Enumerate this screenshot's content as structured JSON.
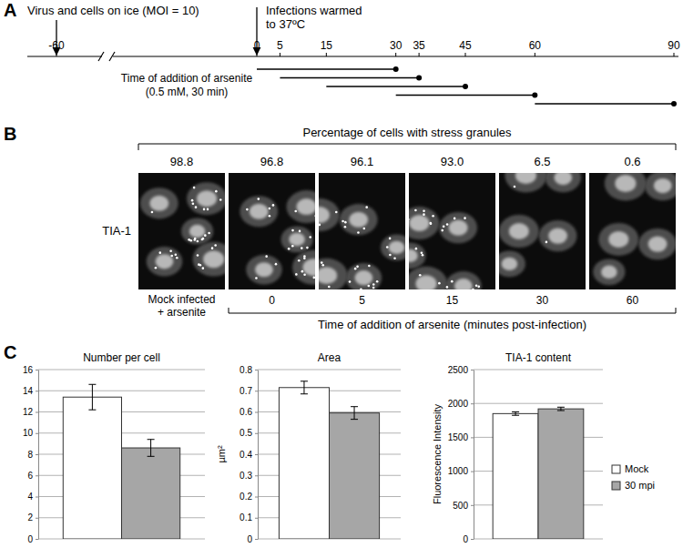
{
  "panel_a": {
    "label": "A",
    "annotations": [
      {
        "text": [
          "Virus and cells on ice (MOI = 10)"
        ],
        "time": -60
      },
      {
        "text": [
          "Infections warmed",
          "to 37ºC"
        ],
        "time": 0
      }
    ],
    "timeline": {
      "ticks": [
        -60,
        0,
        5,
        15,
        30,
        35,
        45,
        60,
        90
      ]
    },
    "treatment": {
      "text": [
        "Time of addition of arsenite",
        "(0.5 mM, 30 min)"
      ],
      "intervals": [
        [
          0,
          30
        ],
        [
          5,
          35
        ],
        [
          15,
          45
        ],
        [
          30,
          60
        ],
        [
          60,
          90
        ]
      ]
    }
  },
  "panel_b": {
    "label": "B",
    "title": "Percentage of cells with stress granules",
    "row_label": "TIA-1",
    "values": [
      98.8,
      96.8,
      96.1,
      93.0,
      6.5,
      0.6
    ],
    "value_labels": [
      "98.8",
      "96.8",
      "96.1",
      "93.0",
      "6.5",
      "0.6"
    ],
    "mock_label": [
      "Mock infected",
      "+ arsenite"
    ],
    "times": [
      null,
      0,
      5,
      15,
      30,
      60
    ],
    "x_title": "Time of addition of arsenite (minutes post-infection)"
  },
  "panel_c": {
    "label": "C"
  },
  "chart_data": [
    {
      "type": "bar",
      "title": "Number per cell",
      "categories": [
        null
      ],
      "series": [
        {
          "color": "#ffffff",
          "values": [
            13.4
          ],
          "errors": [
            1.2
          ]
        },
        {
          "color": "#a6a6a6",
          "values": [
            8.6
          ],
          "errors": [
            0.8
          ]
        }
      ],
      "ylim": [
        0,
        16
      ],
      "yticks": [
        0,
        2,
        4,
        6,
        8,
        10,
        12,
        14,
        16
      ],
      "grid": true
    },
    {
      "type": "bar",
      "title": "Area",
      "y_label": "µm²",
      "categories": [
        null
      ],
      "series": [
        {
          "color": "#ffffff",
          "values": [
            0.715
          ],
          "errors": [
            0.03
          ]
        },
        {
          "color": "#a6a6a6",
          "values": [
            0.595
          ],
          "errors": [
            0.03
          ]
        }
      ],
      "ylim": [
        0,
        0.8
      ],
      "yticks": [
        0,
        0.1,
        0.2,
        0.3,
        0.4,
        0.5,
        0.6,
        0.7,
        0.8
      ],
      "grid": true
    },
    {
      "type": "bar",
      "title": "TIA-1 content",
      "y_label": "Fluorescence Intensity",
      "categories": [
        null
      ],
      "series": [
        {
          "name": "Mock",
          "color": "#ffffff",
          "values": [
            1850
          ],
          "errors": [
            25
          ]
        },
        {
          "name": "30 mpi",
          "color": "#a6a6a6",
          "values": [
            1920
          ],
          "errors": [
            25
          ]
        }
      ],
      "ylim": [
        0,
        2500
      ],
      "yticks": [
        0,
        500,
        1000,
        1500,
        2000,
        2500
      ],
      "grid": true,
      "legend": "right"
    }
  ]
}
